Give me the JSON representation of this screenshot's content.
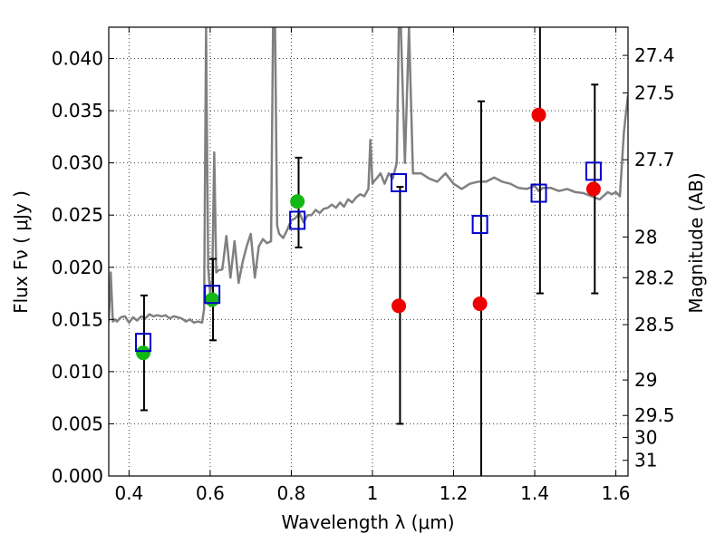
{
  "chart_data": {
    "type": "scatter",
    "title": "",
    "xlabel": "Wavelength  λ (μm)",
    "ylabel": "Flux  Fν ( μJy )",
    "ylabel_right": "Magnitude (AB)",
    "xlim": [
      0.35,
      1.63
    ],
    "ylim": [
      0.0,
      0.043
    ],
    "grid": true,
    "x_ticks": [
      0.4,
      0.6,
      0.8,
      1.0,
      1.2,
      1.4,
      1.6
    ],
    "x_tick_labels": [
      "0.4",
      "0.6",
      "0.8",
      "1",
      "1.2",
      "1.4",
      "1.6"
    ],
    "y_ticks": [
      0.0,
      0.005,
      0.01,
      0.015,
      0.02,
      0.025,
      0.03,
      0.035,
      0.04
    ],
    "y_tick_labels": [
      "0.000",
      "0.005",
      "0.010",
      "0.015",
      "0.020",
      "0.025",
      "0.030",
      "0.035",
      "0.040"
    ],
    "right_ticks": [
      {
        "flux": 0.0403,
        "label": "27.4"
      },
      {
        "flux": 0.0367,
        "label": "27.5"
      },
      {
        "flux": 0.0303,
        "label": "27.7"
      },
      {
        "flux": 0.0229,
        "label": "28"
      },
      {
        "flux": 0.019,
        "label": "28.2"
      },
      {
        "flux": 0.0145,
        "label": "28.5"
      },
      {
        "flux": 0.0092,
        "label": "29"
      },
      {
        "flux": 0.0058,
        "label": "29.5"
      },
      {
        "flux": 0.0037,
        "label": "30"
      },
      {
        "flux": 0.0015,
        "label": "31"
      }
    ],
    "series": [
      {
        "kind": "spectrum",
        "color": "#808080",
        "x": [
          0.35,
          0.355,
          0.36,
          0.365,
          0.37,
          0.38,
          0.39,
          0.4,
          0.41,
          0.42,
          0.43,
          0.44,
          0.45,
          0.46,
          0.47,
          0.48,
          0.49,
          0.5,
          0.51,
          0.52,
          0.53,
          0.54,
          0.55,
          0.56,
          0.57,
          0.58,
          0.585,
          0.59,
          0.595,
          0.6,
          0.605,
          0.61,
          0.615,
          0.62,
          0.63,
          0.64,
          0.65,
          0.66,
          0.67,
          0.68,
          0.69,
          0.7,
          0.71,
          0.72,
          0.73,
          0.74,
          0.75,
          0.755,
          0.76,
          0.765,
          0.77,
          0.78,
          0.79,
          0.8,
          0.81,
          0.82,
          0.83,
          0.84,
          0.85,
          0.86,
          0.87,
          0.88,
          0.89,
          0.9,
          0.91,
          0.92,
          0.93,
          0.94,
          0.95,
          0.96,
          0.97,
          0.98,
          0.99,
          0.995,
          1.0,
          1.005,
          1.01,
          1.02,
          1.03,
          1.04,
          1.05,
          1.06,
          1.065,
          1.07,
          1.08,
          1.09,
          1.1,
          1.12,
          1.14,
          1.16,
          1.18,
          1.2,
          1.22,
          1.24,
          1.26,
          1.28,
          1.3,
          1.32,
          1.34,
          1.36,
          1.38,
          1.4,
          1.41,
          1.42,
          1.44,
          1.46,
          1.48,
          1.5,
          1.52,
          1.54,
          1.56,
          1.58,
          1.59,
          1.6,
          1.61,
          1.62,
          1.63
        ],
        "y": [
          0.0148,
          0.0195,
          0.0148,
          0.015,
          0.0148,
          0.0152,
          0.0153,
          0.0147,
          0.0152,
          0.0149,
          0.0153,
          0.0151,
          0.0155,
          0.0153,
          0.0154,
          0.0153,
          0.0154,
          0.0151,
          0.0153,
          0.0152,
          0.0151,
          0.0148,
          0.015,
          0.0147,
          0.0148,
          0.0147,
          0.016,
          0.043,
          0.02,
          0.0175,
          0.0188,
          0.031,
          0.0195,
          0.0197,
          0.0198,
          0.023,
          0.019,
          0.0225,
          0.0185,
          0.0205,
          0.022,
          0.0232,
          0.019,
          0.022,
          0.0227,
          0.0223,
          0.0225,
          0.043,
          0.043,
          0.024,
          0.0232,
          0.0228,
          0.0236,
          0.0245,
          0.0247,
          0.0252,
          0.0243,
          0.025,
          0.025,
          0.0255,
          0.0252,
          0.0256,
          0.0257,
          0.026,
          0.0257,
          0.0262,
          0.0258,
          0.0265,
          0.0262,
          0.0267,
          0.027,
          0.0268,
          0.0275,
          0.0322,
          0.028,
          0.0283,
          0.0285,
          0.029,
          0.028,
          0.029,
          0.0285,
          0.03,
          0.043,
          0.043,
          0.03,
          0.043,
          0.029,
          0.029,
          0.0285,
          0.0282,
          0.029,
          0.028,
          0.0275,
          0.028,
          0.0282,
          0.0282,
          0.0286,
          0.0282,
          0.028,
          0.0276,
          0.0275,
          0.0278,
          0.0273,
          0.0276,
          0.0276,
          0.0273,
          0.0275,
          0.0272,
          0.0271,
          0.0268,
          0.0265,
          0.0272,
          0.027,
          0.0272,
          0.0268,
          0.033,
          0.0365
        ]
      },
      {
        "kind": "filled-circle",
        "color": "#14b814",
        "x": [
          0.435,
          0.605,
          0.815
        ],
        "y": [
          0.0118,
          0.0169,
          0.0263
        ]
      },
      {
        "kind": "filled-circle",
        "color": "#ee0000",
        "x": [
          1.065,
          1.265,
          1.41,
          1.545
        ],
        "y": [
          0.0163,
          0.0165,
          0.0346,
          0.0275
        ]
      },
      {
        "kind": "open-square",
        "color": "#0000cc",
        "x": [
          0.435,
          0.605,
          0.815,
          1.065,
          1.265,
          1.41,
          1.545
        ],
        "y": [
          0.0128,
          0.0174,
          0.0245,
          0.0281,
          0.0241,
          0.0271,
          0.0292
        ]
      }
    ],
    "error_bars": [
      {
        "x": 0.437,
        "low": 0.0063,
        "high": 0.0173
      },
      {
        "x": 0.607,
        "low": 0.013,
        "high": 0.0208
      },
      {
        "x": 0.818,
        "low": 0.0219,
        "high": 0.0305
      },
      {
        "x": 1.068,
        "low": 0.005,
        "high": 0.0277
      },
      {
        "x": 1.268,
        "low": 0.0,
        "high": 0.0359
      },
      {
        "x": 1.413,
        "low": 0.0175,
        "high": 0.043
      },
      {
        "x": 1.548,
        "low": 0.0175,
        "high": 0.0375
      }
    ]
  }
}
